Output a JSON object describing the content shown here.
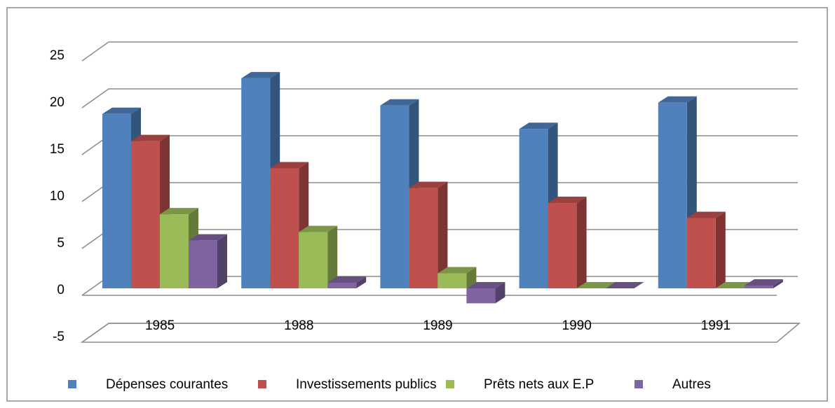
{
  "chart_data": {
    "type": "bar3d",
    "categories": [
      "1985",
      "1988",
      "1989",
      "1990",
      "1991"
    ],
    "series": [
      {
        "name": "Dépenses courantes",
        "color": "#4f81bd",
        "values": [
          18.6,
          22.4,
          19.5,
          17.0,
          19.8
        ]
      },
      {
        "name": "Investissements publics",
        "color": "#c0504d",
        "values": [
          15.7,
          12.8,
          10.7,
          9.1,
          7.5
        ]
      },
      {
        "name": "Prêts nets aux E.P",
        "color": "#9bbb59",
        "values": [
          7.9,
          6.0,
          1.6,
          0,
          0
        ]
      },
      {
        "name": "Autres",
        "color": "#8064a2",
        "values": [
          5.1,
          0.6,
          -1.6,
          0,
          0.3
        ]
      }
    ],
    "ylim": [
      -5,
      25
    ],
    "yticks": [
      -5,
      0,
      5,
      10,
      15,
      20,
      25
    ],
    "grid": true,
    "legend": "bottom"
  }
}
